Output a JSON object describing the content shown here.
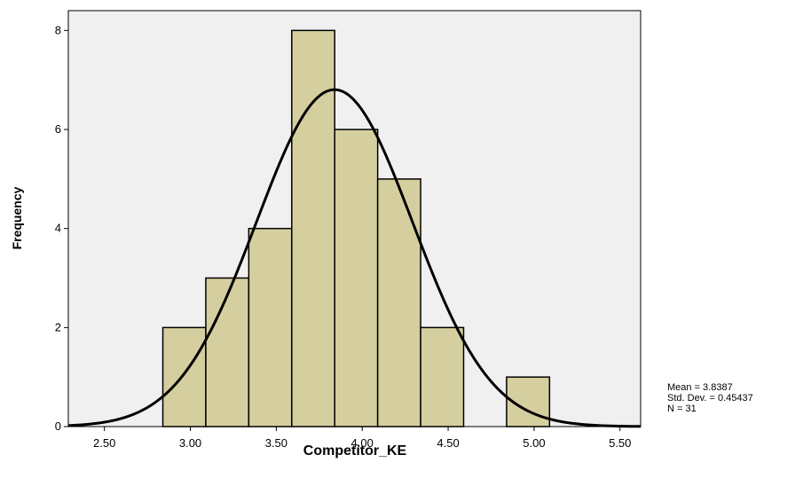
{
  "chart_data": {
    "type": "histogram",
    "xlabel": "Competitor_KE",
    "ylabel": "Frequency",
    "bins": [
      2.84,
      3.09,
      3.34,
      3.59,
      3.84,
      4.09,
      4.34,
      4.59,
      4.84,
      5.09
    ],
    "counts": [
      2,
      3,
      4,
      8,
      6,
      5,
      2,
      0,
      1
    ],
    "color": "#d5cf9f",
    "xlim": [
      2.29,
      5.62
    ],
    "xticks": [
      {
        "value": 2.5,
        "label": "2.50"
      },
      {
        "value": 3.0,
        "label": "3.00"
      },
      {
        "value": 3.5,
        "label": "3.50"
      },
      {
        "value": 4.0,
        "label": "4.00"
      },
      {
        "value": 4.5,
        "label": "4.50"
      },
      {
        "value": 5.0,
        "label": "5.00"
      },
      {
        "value": 5.5,
        "label": "5.50"
      }
    ],
    "ylim": [
      0,
      8.4
    ],
    "yticks": [
      0,
      2,
      4,
      6,
      8
    ],
    "normal_curve": {
      "mean": 3.8387,
      "std_dev": 0.45437,
      "n": 31
    },
    "stats_text": [
      "Mean = 3.8387",
      "Std. Dev. = 0.45437",
      "N = 31"
    ]
  }
}
